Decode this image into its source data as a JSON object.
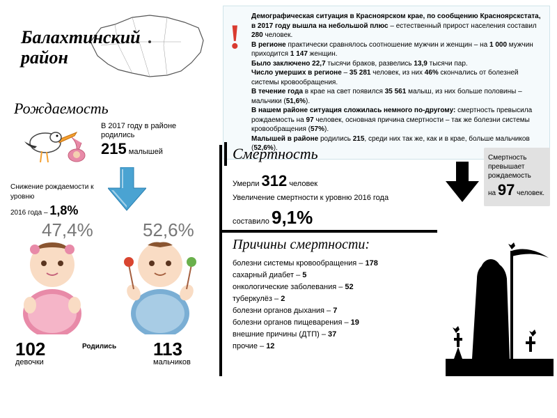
{
  "title": "Балахтинский\nрайон",
  "alert": {
    "lines": [
      {
        "bold": "Демографическая ситуация в Красноярском крае, по сообщению Красноярскстата, в 2017 году вышла на небольшой плюс",
        "rest": " – естественный прирост населения составил ",
        "num": "280",
        "rest2": " человек."
      },
      {
        "bold": "В регионе",
        "rest": " практически сравнялось соотношение мужчин и женщин – на ",
        "num": "1 000",
        "rest2": " мужчин приходится ",
        "num2": "1 147",
        "rest3": " женщин."
      },
      {
        "bold": "Было заключено 22,7",
        "rest": " тысячи браков, развелись ",
        "num": "13,9",
        "rest2": " тысячи пар."
      },
      {
        "bold": "Число умерших в регионе",
        "rest": " – ",
        "num": "35 281",
        "rest2": " человек, из них ",
        "num2": "46%",
        "rest3": " скончались от болезней системы кровообращения."
      },
      {
        "bold": "В течение года",
        "rest": " в крае на свет появился ",
        "num": "35 561",
        "rest2": " малыш, из них больше половины – мальчики (",
        "num2": "51,6%",
        "rest3": ")."
      },
      {
        "bold": "В нашем районе ситуация сложилась немного по-другому:",
        "rest": " смертность превысила рождаемость на ",
        "num": "97",
        "rest2": " человек, основная причина смертности – так же болезни системы кровообращения (",
        "num2": "57%",
        "rest3": ")."
      },
      {
        "bold": "Малышей в районе",
        "rest": " родились ",
        "num": "215",
        "rest2": ", среди них так же, как и в крае, больше мальчиков (",
        "num2": "52,6%",
        "rest3": ")."
      }
    ]
  },
  "birth": {
    "header": "Рождаемость",
    "year_text": "В 2017 году в районе родились",
    "count": "215",
    "count_label": "малышей",
    "decline_text1": "Снижение рождаемости к уровню",
    "decline_text2": "2016 года –",
    "decline_pct": "1,8%",
    "girl_pct": "47,4%",
    "boy_pct": "52,6%",
    "girl_count": "102",
    "girl_label": "девочки",
    "boy_count": "113",
    "boy_label": "мальчиков",
    "born_label": "Родились"
  },
  "death": {
    "header": "Смертность",
    "died_label": "Умерли",
    "died_count": "312",
    "died_unit": "человек",
    "increase_text1": "Увеличение смертности к уровню 2016 года",
    "increase_text2": "составило",
    "increase_pct": "9,1%",
    "exceed_text1": "Смертность превышает рождаемость",
    "exceed_text2": "на",
    "exceed_count": "97",
    "exceed_unit": "человек."
  },
  "causes": {
    "header": "Причины смертности:",
    "items": [
      {
        "name": "болезни системы кровообращения –",
        "val": "178"
      },
      {
        "name": "сахарный диабет –",
        "val": "5"
      },
      {
        "name": "онкологические заболевания –",
        "val": "52"
      },
      {
        "name": "туберкулёз –",
        "val": "2"
      },
      {
        "name": "болезни органов дыхания –",
        "val": "7"
      },
      {
        "name": "болезни органов пищеварения –",
        "val": "19"
      },
      {
        "name": "внешние причины (ДТП) –",
        "val": "37"
      },
      {
        "name": "прочие –",
        "val": "12"
      }
    ]
  },
  "colors": {
    "alert_bg": "#f5fafc",
    "alert_icon": "#d93a2f",
    "arrow_blue": "#4aa3d2",
    "girl_pink": "#e88aa8",
    "boy_blue": "#7aaed4",
    "gray_box": "#e1e1e1"
  }
}
